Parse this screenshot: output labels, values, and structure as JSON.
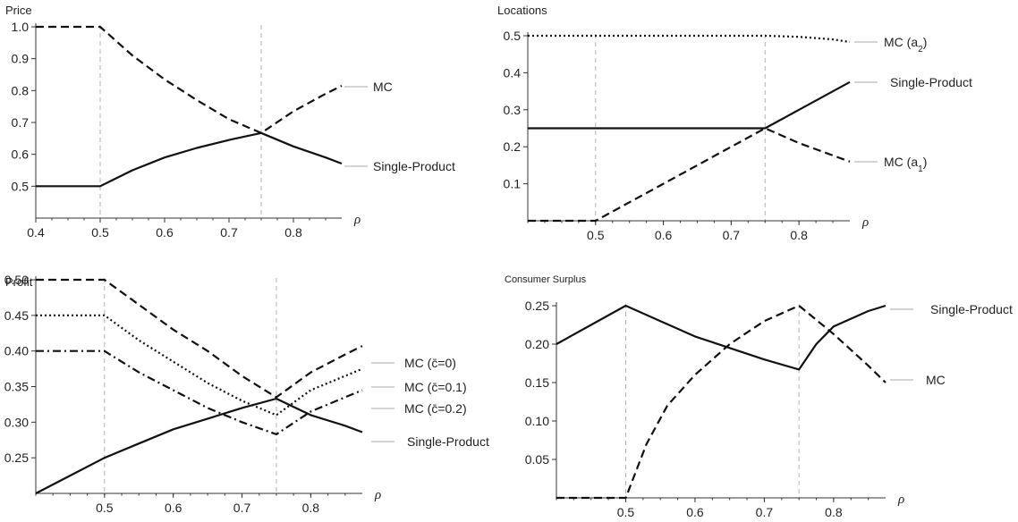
{
  "chart_data": [
    {
      "type": "line",
      "ylabel": "Price",
      "xlabel": "ρ",
      "xlim": [
        0.4,
        0.875
      ],
      "ylim": [
        0.4,
        1.0
      ],
      "xticks": [
        "0.4",
        "0.5",
        "0.6",
        "0.7",
        "0.8"
      ],
      "yticks": [
        "0.5",
        "0.6",
        "0.7",
        "0.8",
        "0.9",
        "1.0"
      ],
      "reference_lines_x": [
        0.5,
        0.75
      ],
      "series": [
        {
          "name": "MC",
          "style": "dashed",
          "x": [
            0.4,
            0.5,
            0.55,
            0.6,
            0.65,
            0.7,
            0.75,
            0.8,
            0.85,
            0.875
          ],
          "y": [
            1.0,
            1.0,
            0.91,
            0.835,
            0.77,
            0.71,
            0.667,
            0.735,
            0.79,
            0.815
          ]
        },
        {
          "name": "Single-Product",
          "style": "solid",
          "x": [
            0.4,
            0.5,
            0.55,
            0.6,
            0.65,
            0.7,
            0.75,
            0.8,
            0.85,
            0.875
          ],
          "y": [
            0.5,
            0.5,
            0.55,
            0.59,
            0.62,
            0.645,
            0.667,
            0.625,
            0.59,
            0.571
          ]
        }
      ]
    },
    {
      "type": "line",
      "ylabel": "Locations",
      "xlabel": "ρ",
      "xlim": [
        0.4,
        0.875
      ],
      "ylim": [
        0.0,
        0.5
      ],
      "xticks": [
        "0.5",
        "0.6",
        "0.7",
        "0.8"
      ],
      "yticks": [
        "0.1",
        "0.2",
        "0.3",
        "0.4",
        "0.5"
      ],
      "reference_lines_x": [
        0.5,
        0.75
      ],
      "series": [
        {
          "name": "MC (a",
          "sub": "2",
          "style": "dotted",
          "x": [
            0.4,
            0.5,
            0.6,
            0.7,
            0.75,
            0.8,
            0.85,
            0.875
          ],
          "y": [
            0.5,
            0.5,
            0.5,
            0.5,
            0.5,
            0.497,
            0.49,
            0.483
          ]
        },
        {
          "name": "Single-Product",
          "style": "solid",
          "x": [
            0.4,
            0.5,
            0.6,
            0.7,
            0.75,
            0.8,
            0.875
          ],
          "y": [
            0.25,
            0.25,
            0.25,
            0.25,
            0.25,
            0.3,
            0.375
          ]
        },
        {
          "name": "MC (a",
          "sub": "1",
          "style": "dashed",
          "x": [
            0.4,
            0.5,
            0.6,
            0.7,
            0.75,
            0.8,
            0.875
          ],
          "y": [
            0.0,
            0.0,
            0.1,
            0.2,
            0.25,
            0.21,
            0.16
          ]
        }
      ]
    },
    {
      "type": "line",
      "ylabel": "Profit",
      "xlabel": "ρ",
      "xlim": [
        0.4,
        0.875
      ],
      "ylim": [
        0.2,
        0.5
      ],
      "xticks": [
        "0.5",
        "0.6",
        "0.7",
        "0.8"
      ],
      "yticks": [
        "0.25",
        "0.30",
        "0.35",
        "0.40",
        "0.45",
        "0.50"
      ],
      "reference_lines_x": [
        0.5,
        0.75
      ],
      "series": [
        {
          "name": "MC (c̄=0)",
          "style": "dashed",
          "x": [
            0.4,
            0.5,
            0.55,
            0.6,
            0.65,
            0.7,
            0.75,
            0.8,
            0.85,
            0.875
          ],
          "y": [
            0.5,
            0.5,
            0.465,
            0.43,
            0.4,
            0.365,
            0.335,
            0.37,
            0.395,
            0.407
          ]
        },
        {
          "name": "MC (c̄=0.1)",
          "style": "dotted",
          "x": [
            0.4,
            0.5,
            0.55,
            0.6,
            0.65,
            0.7,
            0.75,
            0.8,
            0.85,
            0.875
          ],
          "y": [
            0.45,
            0.45,
            0.415,
            0.385,
            0.355,
            0.33,
            0.31,
            0.345,
            0.365,
            0.375
          ]
        },
        {
          "name": "MC (c̄=0.2)",
          "style": "dashdot",
          "x": [
            0.4,
            0.5,
            0.55,
            0.6,
            0.65,
            0.7,
            0.75,
            0.8,
            0.85,
            0.875
          ],
          "y": [
            0.4,
            0.4,
            0.37,
            0.345,
            0.32,
            0.3,
            0.283,
            0.315,
            0.335,
            0.345
          ]
        },
        {
          "name": "Single-Product",
          "style": "solid",
          "x": [
            0.4,
            0.45,
            0.5,
            0.55,
            0.6,
            0.65,
            0.7,
            0.75,
            0.8,
            0.85,
            0.875
          ],
          "y": [
            0.2,
            0.225,
            0.25,
            0.27,
            0.29,
            0.305,
            0.32,
            0.333,
            0.31,
            0.295,
            0.286
          ]
        }
      ]
    },
    {
      "type": "line",
      "ylabel": "Consumer Surplus",
      "xlabel": "ρ",
      "xlim": [
        0.4,
        0.875
      ],
      "ylim": [
        0.0,
        0.25
      ],
      "xticks": [
        "0.5",
        "0.6",
        "0.7",
        "0.8"
      ],
      "yticks": [
        "0.05",
        "0.10",
        "0.15",
        "0.20",
        "0.25"
      ],
      "reference_lines_x": [
        0.5,
        0.75
      ],
      "series": [
        {
          "name": "Single-Product",
          "style": "solid",
          "x": [
            0.4,
            0.5,
            0.55,
            0.6,
            0.65,
            0.7,
            0.75,
            0.775,
            0.8,
            0.85,
            0.875
          ],
          "y": [
            0.2,
            0.25,
            0.23,
            0.21,
            0.195,
            0.18,
            0.167,
            0.2,
            0.223,
            0.243,
            0.25
          ]
        },
        {
          "name": "MC",
          "style": "dashed",
          "x": [
            0.4,
            0.5,
            0.53,
            0.56,
            0.6,
            0.65,
            0.7,
            0.75,
            0.8,
            0.85,
            0.875
          ],
          "y": [
            0.0,
            0.0,
            0.07,
            0.12,
            0.16,
            0.2,
            0.23,
            0.25,
            0.213,
            0.172,
            0.15
          ]
        }
      ]
    }
  ]
}
